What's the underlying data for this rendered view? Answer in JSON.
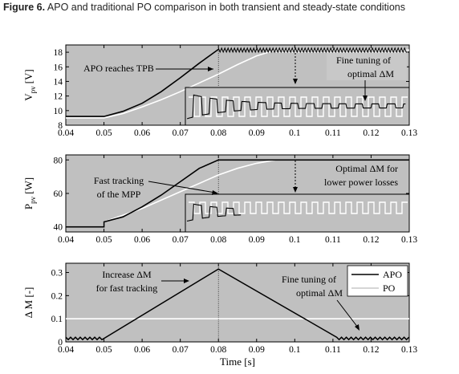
{
  "caption": {
    "prefix": "Figure 6.",
    "text": "APO and traditional PO comparison in both transient and steady-state conditions"
  },
  "colors": {
    "plot_bg": "#c0c0c0",
    "apo": "#000000",
    "po": "#ffffff"
  },
  "chart_data": [
    {
      "type": "line",
      "ylabel": "V",
      "ylabel_sub": "pv",
      "ylabel_unit": "[V]",
      "xlim": [
        0.04,
        0.13
      ],
      "ylim": [
        8,
        19
      ],
      "x_ticks": [
        "0.04",
        "0.05",
        "0.06",
        "0.07",
        "0.08",
        "0.09",
        "0.1",
        "0.11",
        "0.12",
        "0.13"
      ],
      "y_ticks": [
        8,
        10,
        12,
        14,
        16,
        18
      ],
      "annotations": [
        {
          "text": "APO reaches TPB"
        },
        {
          "text": "Fine tuning of"
        },
        {
          "text": "optimal ΔM"
        }
      ],
      "series": [
        {
          "name": "APO",
          "x": [
            0.04,
            0.05,
            0.055,
            0.06,
            0.065,
            0.07,
            0.075,
            0.08,
            0.13
          ],
          "y": [
            9.2,
            9.2,
            9.9,
            11.0,
            12.6,
            14.5,
            16.5,
            18.4,
            18.3
          ]
        },
        {
          "name": "PO",
          "x": [
            0.04,
            0.05,
            0.055,
            0.06,
            0.065,
            0.07,
            0.075,
            0.08,
            0.085,
            0.09,
            0.095,
            0.13
          ],
          "y": [
            9.0,
            9.0,
            9.6,
            10.5,
            11.5,
            12.6,
            13.8,
            15.0,
            16.3,
            17.5,
            18.3,
            18.3
          ]
        }
      ]
    },
    {
      "type": "line",
      "ylabel": "P",
      "ylabel_sub": "pv",
      "ylabel_unit": "[W]",
      "xlim": [
        0.04,
        0.13
      ],
      "ylim": [
        37,
        83
      ],
      "x_ticks": [
        "0.04",
        "0.05",
        "0.06",
        "0.07",
        "0.08",
        "0.09",
        "0.1",
        "0.11",
        "0.12",
        "0.13"
      ],
      "y_ticks": [
        40,
        60,
        80
      ],
      "annotations": [
        {
          "text": "Fast tracking"
        },
        {
          "text": "of the MPP"
        },
        {
          "text": "Optimal ΔM for"
        },
        {
          "text": "lower power losses"
        }
      ],
      "series": [
        {
          "name": "APO",
          "x": [
            0.04,
            0.05,
            0.05,
            0.055,
            0.06,
            0.065,
            0.07,
            0.075,
            0.08,
            0.13
          ],
          "y": [
            40,
            40,
            43,
            46,
            52,
            59,
            67,
            75,
            80,
            80
          ]
        },
        {
          "name": "PO",
          "x": [
            0.04,
            0.05,
            0.05,
            0.06,
            0.07,
            0.075,
            0.08,
            0.085,
            0.09,
            0.095,
            0.13
          ],
          "y": [
            40,
            40,
            43,
            51,
            61,
            66,
            71,
            75,
            78,
            80,
            80
          ]
        }
      ]
    },
    {
      "type": "line",
      "ylabel": "Δ M [-]",
      "xlabel": "Time [s]",
      "xlim": [
        0.04,
        0.13
      ],
      "ylim": [
        0,
        0.34
      ],
      "x_ticks": [
        "0.04",
        "0.05",
        "0.06",
        "0.07",
        "0.08",
        "0.09",
        "0.1",
        "0.11",
        "0.12",
        "0.13"
      ],
      "y_ticks": [
        "0",
        "0.1",
        "0.2",
        "0.3"
      ],
      "legend": {
        "position": "top-right",
        "entries": [
          "APO",
          "PO"
        ]
      },
      "annotations": [
        {
          "text": "Increase ΔM"
        },
        {
          "text": "for fast tracking"
        },
        {
          "text": "Fine tuning of"
        },
        {
          "text": "optimal ΔM"
        }
      ],
      "series": [
        {
          "name": "APO",
          "x": [
            0.04,
            0.05,
            0.08,
            0.111,
            0.13
          ],
          "y": [
            0.02,
            0.02,
            0.315,
            0.02,
            0.02
          ]
        },
        {
          "name": "PO",
          "x": [
            0.04,
            0.13
          ],
          "y": [
            0.1,
            0.1
          ]
        }
      ]
    }
  ]
}
